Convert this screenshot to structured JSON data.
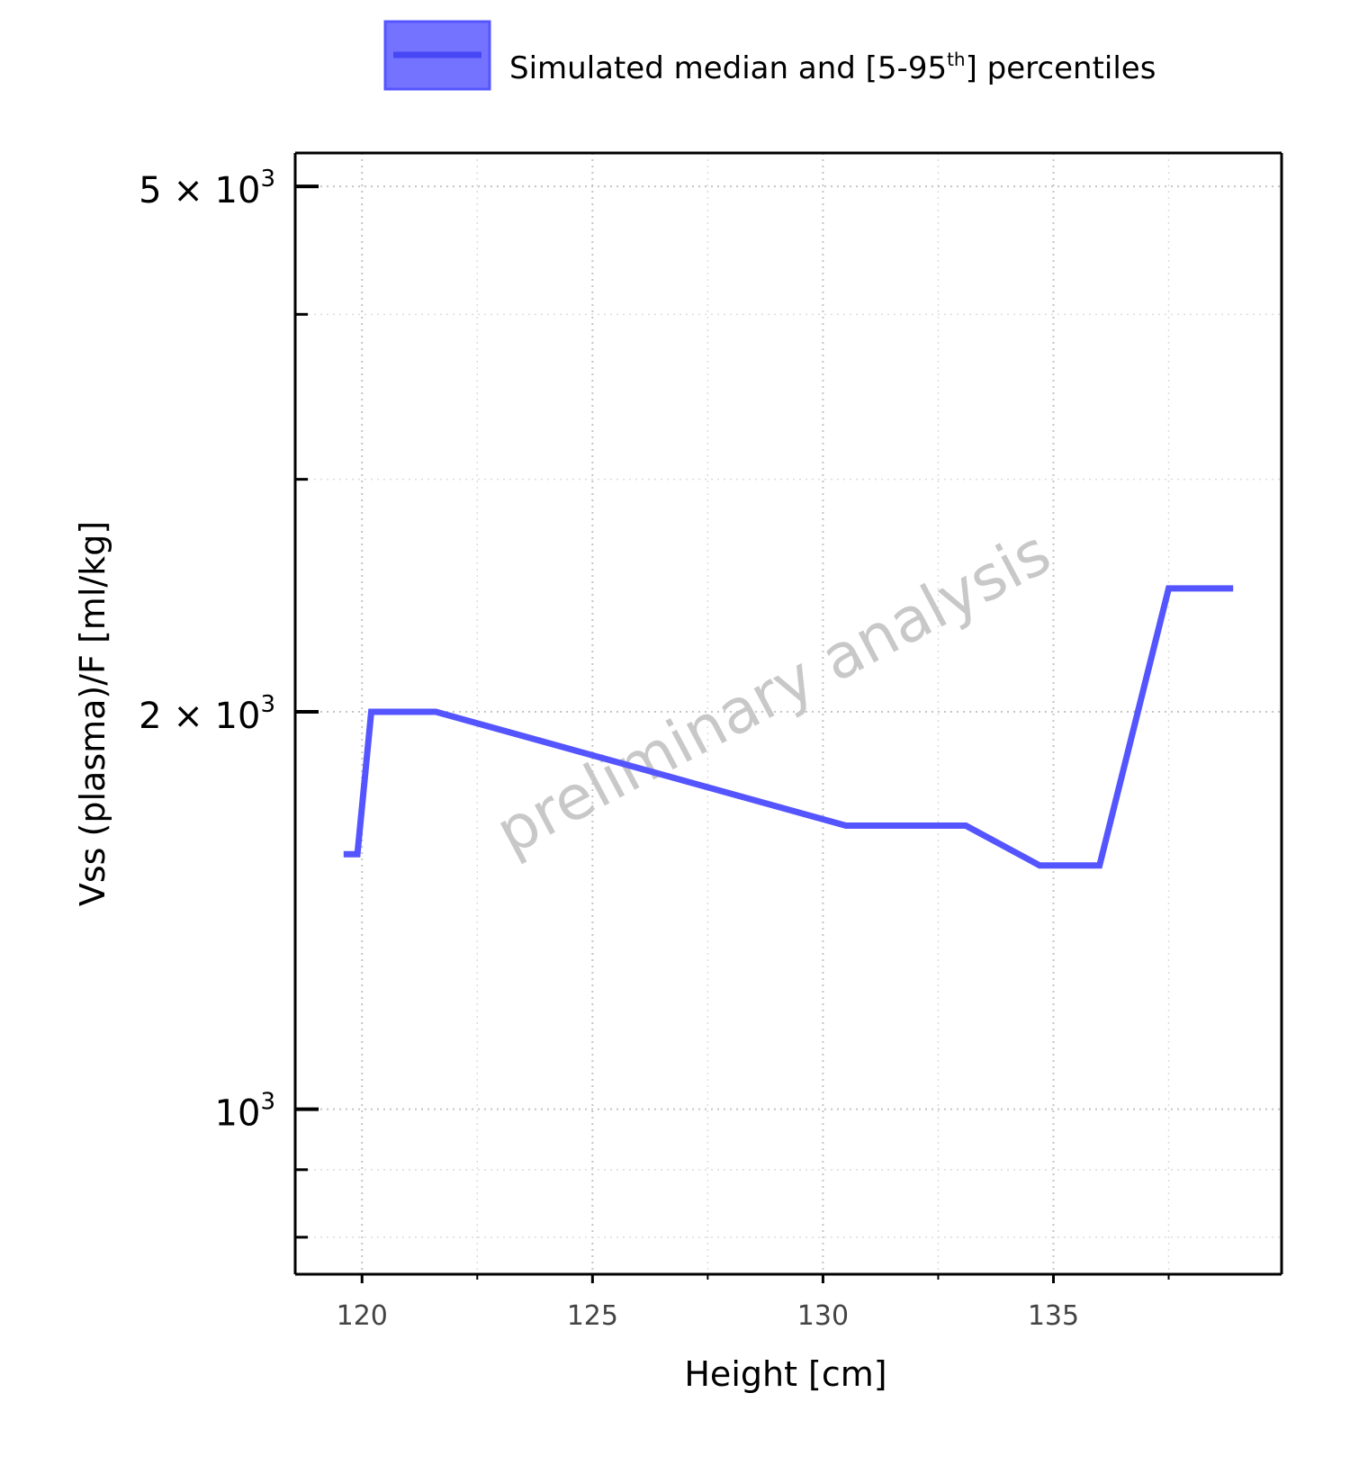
{
  "chart_data": {
    "type": "line",
    "legend": {
      "placement": "top",
      "label_main": "Simulated median and [5-95",
      "label_sup": "th",
      "label_end": "] percentiles"
    },
    "xlabel": "Height [cm]",
    "ylabel": "Vss (plasma)/F [ml/kg]",
    "xlim": [
      118.55,
      139.95
    ],
    "ylim": [
      750,
      5300
    ],
    "yscale": "log",
    "grid": true,
    "x_ticks": [
      120,
      125,
      130,
      135
    ],
    "x_tick_labels": [
      "120",
      "125",
      "130",
      "135"
    ],
    "y_major_ticks": [
      {
        "value": 5000,
        "mantissa": "5",
        "times": "×",
        "base": "10",
        "exponent": "3"
      },
      {
        "value": 2000,
        "mantissa": "2",
        "times": "×",
        "base": "10",
        "exponent": "3"
      },
      {
        "value": 1000,
        "mantissa": "",
        "times": "",
        "base": "10",
        "exponent": "3"
      }
    ],
    "y_minor_ticks": [
      800,
      900,
      3000,
      4000
    ],
    "watermark": "preliminary analysis",
    "series": [
      {
        "name": "Simulated median and [5-95th] percentiles",
        "color": "#5555ff",
        "x": [
          119.6,
          119.9,
          120.2,
          121.6,
          130.5,
          133.1,
          134.7,
          136.0,
          137.5,
          138.9
        ],
        "y": [
          1560,
          1560,
          2000,
          2000,
          1640,
          1640,
          1530,
          1530,
          2480,
          2480
        ]
      }
    ]
  }
}
